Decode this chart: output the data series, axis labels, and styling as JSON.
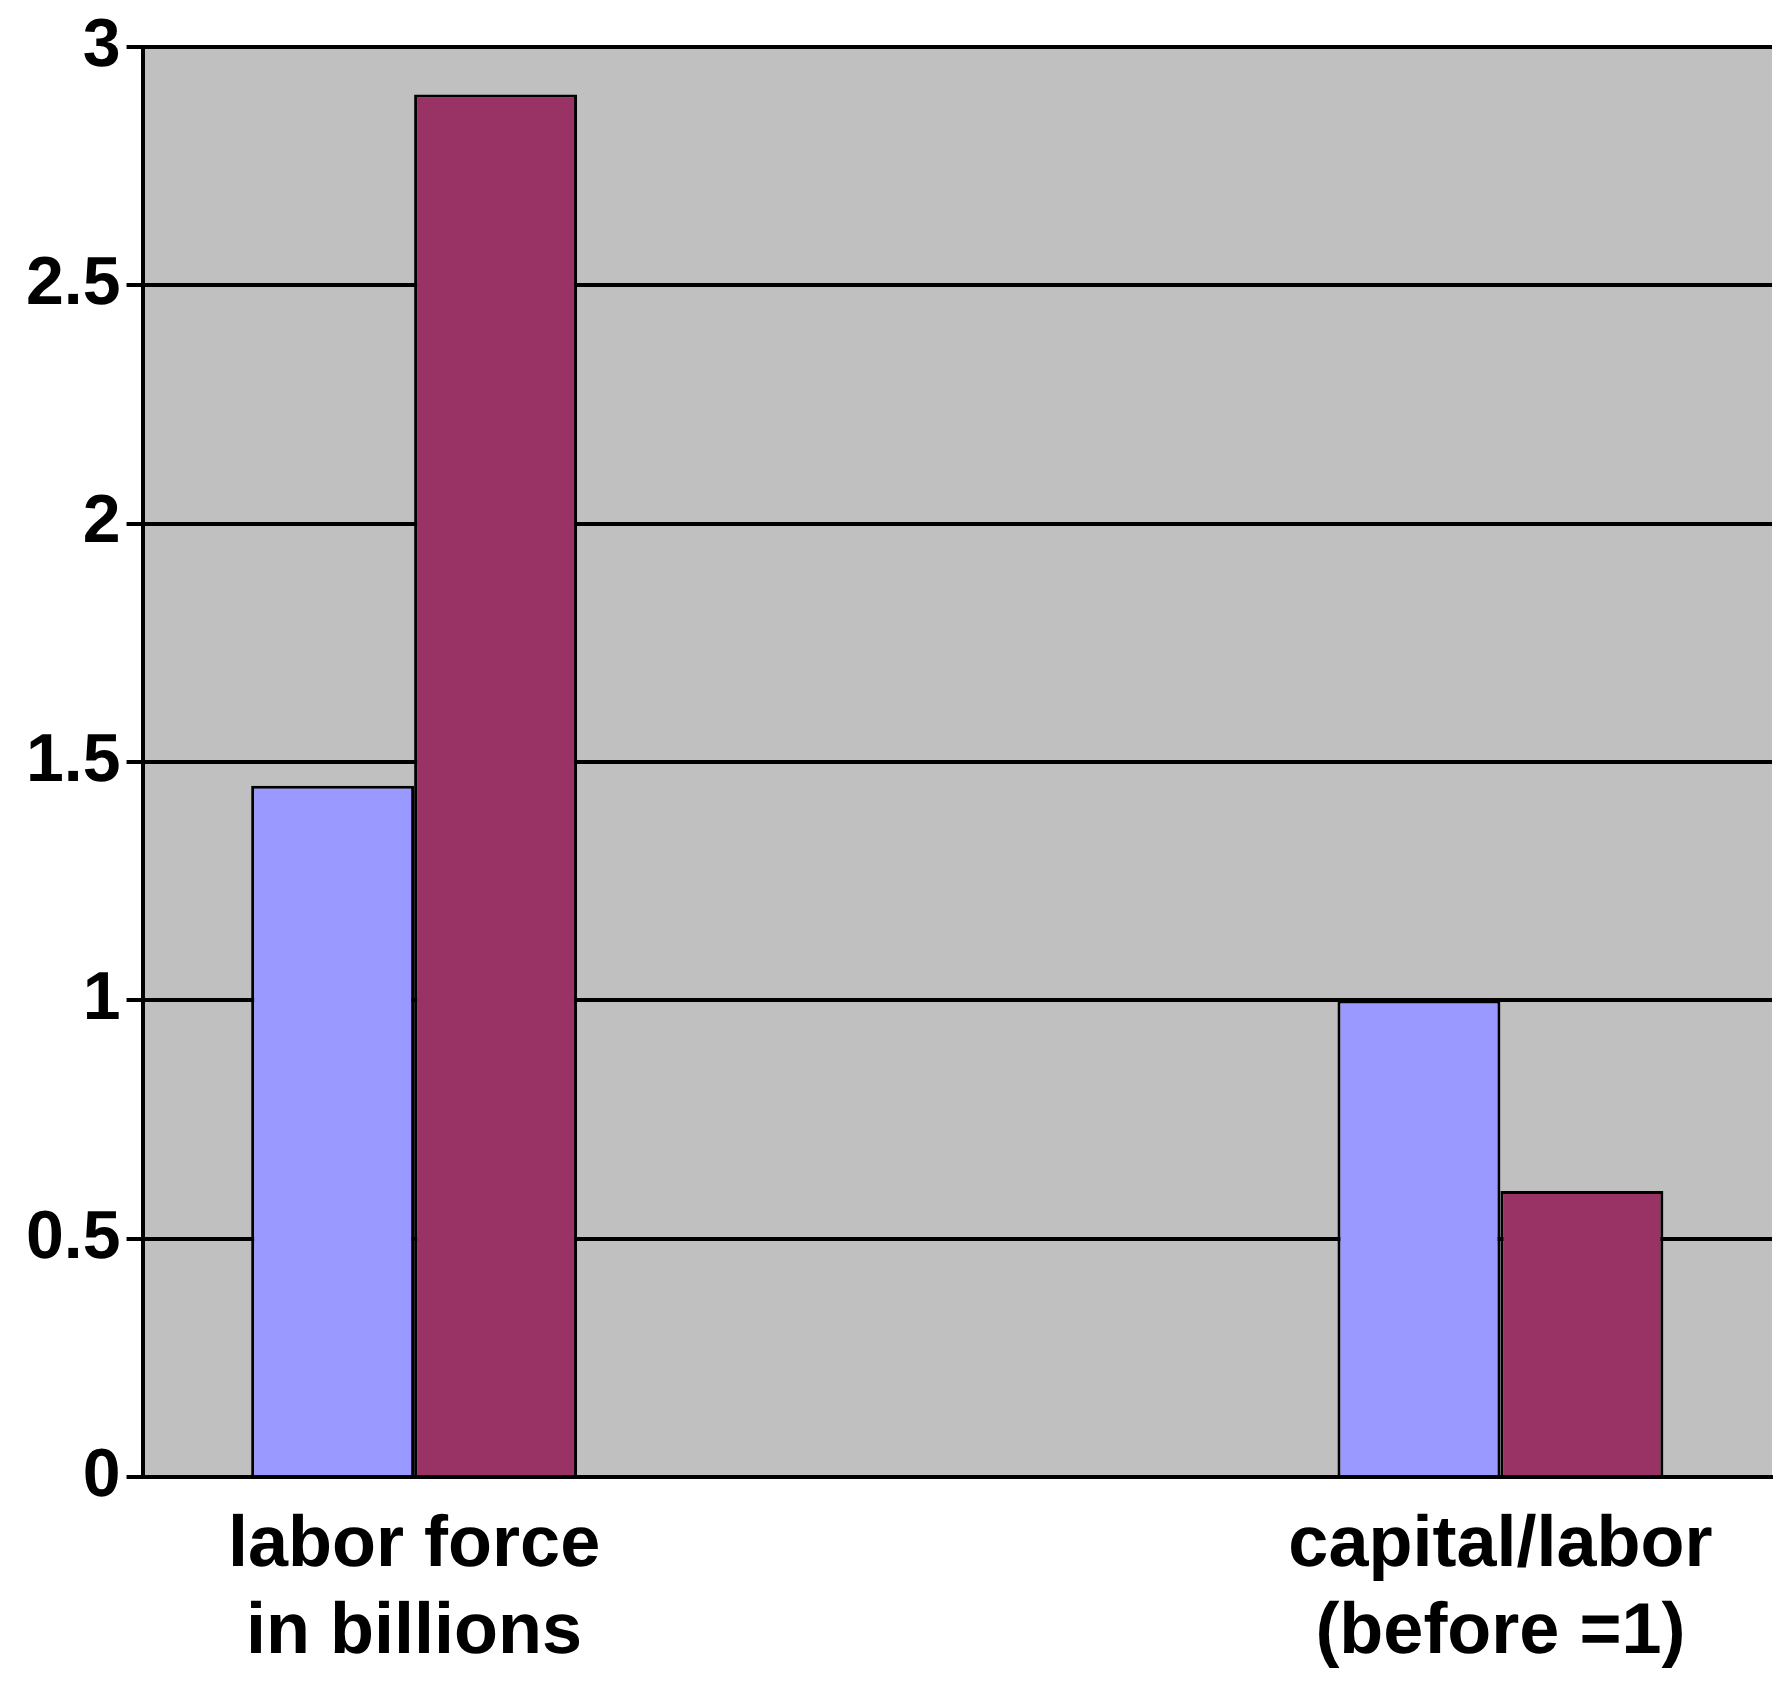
{
  "chart_data": {
    "type": "bar",
    "categories": [
      "labor force in billions",
      null,
      "capital/labor (before =1)"
    ],
    "series": [
      {
        "color": "#9999ff",
        "values": [
          1.45,
          null,
          1
        ]
      },
      {
        "color": "#993366",
        "values": [
          2.9,
          null,
          0.6
        ]
      }
    ],
    "ylim": [
      0,
      3
    ],
    "yticks": [
      0,
      0.5,
      1,
      1.5,
      2,
      2.5,
      3
    ],
    "grid": "y",
    "legend": false
  }
}
